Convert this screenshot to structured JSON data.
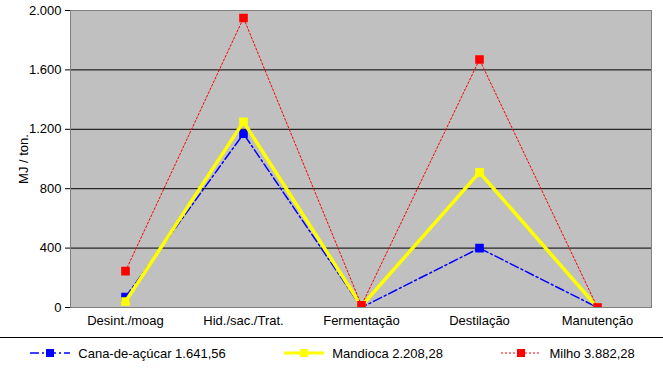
{
  "chart_data": {
    "type": "line",
    "y_label": "MJ / ton.",
    "categories": [
      "Desint./moag",
      "Hid./sac./Trat.",
      "Fermentação",
      "Destilação",
      "Manutenção"
    ],
    "series": [
      {
        "name": "Cana-de-açúcar 1.641,56",
        "color": "#0000ff",
        "line_style": "dashdot",
        "marker": "square",
        "values": [
          70,
          1170,
          0,
          400,
          0
        ]
      },
      {
        "name": "Mandioca 2.208,28",
        "color": "#ffff00",
        "line_style": "solid",
        "marker": "square",
        "values": [
          40,
          1250,
          10,
          910,
          0
        ]
      },
      {
        "name": "Milho 3.882,28",
        "color": "#ff0000",
        "line_style": "dotted",
        "marker": "square",
        "values": [
          245,
          1950,
          15,
          1670,
          0
        ]
      }
    ],
    "ylim": [
      0,
      2000
    ],
    "yticks": [
      0,
      400,
      800,
      {
        "value": 1200,
        "label": "1.200"
      },
      {
        "value": 1600,
        "label": "1.600"
      },
      {
        "value": 2000,
        "label": "2.000"
      }
    ],
    "grid": true,
    "legend": "bottom"
  }
}
